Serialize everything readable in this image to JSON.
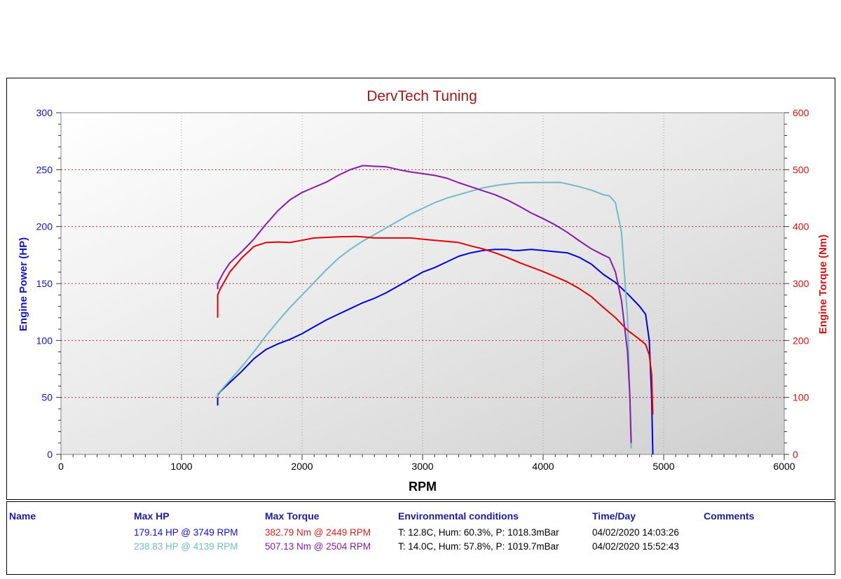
{
  "chart_data": {
    "type": "line",
    "title": "DervTech Tuning",
    "xlabel": "RPM",
    "ylabel_left": "Engine Power (HP)",
    "ylabel_right": "Engine Torque (Nm)",
    "xlim": [
      0,
      6000
    ],
    "ylim_left": [
      0,
      300
    ],
    "ylim_right": [
      0,
      600
    ],
    "x_ticks": [
      "0",
      "1000",
      "2000",
      "3000",
      "4000",
      "5000",
      "6000"
    ],
    "y_ticks_left": [
      "0",
      "50",
      "100",
      "150",
      "200",
      "250",
      "300"
    ],
    "y_ticks_right": [
      "0",
      "100",
      "200",
      "300",
      "400",
      "500",
      "600"
    ],
    "grid": true,
    "legend": "none",
    "series": [
      {
        "axis": "left",
        "color": "#0000dd",
        "points": [
          [
            1300,
            43
          ],
          [
            1300,
            52
          ],
          [
            1320,
            55
          ],
          [
            1400,
            63
          ],
          [
            1500,
            73
          ],
          [
            1600,
            84
          ],
          [
            1700,
            92
          ],
          [
            1800,
            97
          ],
          [
            1900,
            101
          ],
          [
            2000,
            106
          ],
          [
            2100,
            112
          ],
          [
            2200,
            118
          ],
          [
            2300,
            123
          ],
          [
            2400,
            128
          ],
          [
            2500,
            133
          ],
          [
            2600,
            137
          ],
          [
            2700,
            142
          ],
          [
            2800,
            148
          ],
          [
            2900,
            154
          ],
          [
            3000,
            160
          ],
          [
            3100,
            164
          ],
          [
            3200,
            169
          ],
          [
            3300,
            174
          ],
          [
            3400,
            177
          ],
          [
            3500,
            179
          ],
          [
            3600,
            180
          ],
          [
            3700,
            180
          ],
          [
            3749,
            179.14
          ],
          [
            3800,
            179
          ],
          [
            3900,
            180
          ],
          [
            4000,
            179
          ],
          [
            4100,
            178
          ],
          [
            4200,
            177
          ],
          [
            4300,
            173
          ],
          [
            4400,
            167
          ],
          [
            4500,
            158
          ],
          [
            4600,
            151
          ],
          [
            4700,
            141
          ],
          [
            4800,
            130
          ],
          [
            4850,
            123
          ],
          [
            4880,
            100
          ],
          [
            4900,
            50
          ],
          [
            4910,
            0
          ]
        ]
      },
      {
        "axis": "left",
        "color": "#6fbcc4",
        "points": [
          [
            1300,
            50
          ],
          [
            1300,
            53
          ],
          [
            1400,
            65
          ],
          [
            1500,
            77
          ],
          [
            1600,
            90
          ],
          [
            1700,
            104
          ],
          [
            1800,
            117
          ],
          [
            1900,
            129
          ],
          [
            2000,
            140
          ],
          [
            2100,
            151
          ],
          [
            2200,
            162
          ],
          [
            2300,
            172
          ],
          [
            2400,
            180
          ],
          [
            2500,
            187
          ],
          [
            2600,
            193
          ],
          [
            2700,
            199
          ],
          [
            2800,
            205
          ],
          [
            2900,
            211
          ],
          [
            3000,
            216
          ],
          [
            3100,
            221
          ],
          [
            3200,
            225
          ],
          [
            3300,
            228
          ],
          [
            3400,
            231
          ],
          [
            3500,
            234
          ],
          [
            3600,
            236
          ],
          [
            3700,
            237.5
          ],
          [
            3800,
            238.5
          ],
          [
            3900,
            238.7
          ],
          [
            4000,
            238.8
          ],
          [
            4139,
            238.83
          ],
          [
            4200,
            237.5
          ],
          [
            4300,
            235
          ],
          [
            4400,
            232
          ],
          [
            4500,
            228
          ],
          [
            4550,
            227
          ],
          [
            4600,
            221
          ],
          [
            4650,
            195
          ],
          [
            4700,
            120
          ],
          [
            4720,
            50
          ],
          [
            4730,
            5
          ]
        ]
      },
      {
        "axis": "right",
        "color": "#e60000",
        "points": [
          [
            1300,
            240
          ],
          [
            1300,
            280
          ],
          [
            1320,
            290
          ],
          [
            1400,
            320
          ],
          [
            1500,
            345
          ],
          [
            1600,
            365
          ],
          [
            1700,
            372
          ],
          [
            1800,
            373
          ],
          [
            1900,
            372
          ],
          [
            2000,
            376
          ],
          [
            2100,
            380
          ],
          [
            2200,
            381
          ],
          [
            2300,
            382
          ],
          [
            2449,
            382.79
          ],
          [
            2500,
            382
          ],
          [
            2600,
            380
          ],
          [
            2700,
            380
          ],
          [
            2800,
            380
          ],
          [
            2900,
            380
          ],
          [
            3000,
            378
          ],
          [
            3100,
            376
          ],
          [
            3200,
            374
          ],
          [
            3300,
            372
          ],
          [
            3400,
            366
          ],
          [
            3500,
            361
          ],
          [
            3600,
            354
          ],
          [
            3700,
            346
          ],
          [
            3800,
            337
          ],
          [
            3900,
            329
          ],
          [
            4000,
            321
          ],
          [
            4100,
            312
          ],
          [
            4200,
            303
          ],
          [
            4300,
            291
          ],
          [
            4400,
            277
          ],
          [
            4500,
            258
          ],
          [
            4600,
            240
          ],
          [
            4700,
            218
          ],
          [
            4800,
            202
          ],
          [
            4850,
            193
          ],
          [
            4880,
            175
          ],
          [
            4900,
            140
          ],
          [
            4910,
            70
          ]
        ]
      },
      {
        "axis": "right",
        "color": "#8a1aa8",
        "points": [
          [
            1300,
            290
          ],
          [
            1300,
            300
          ],
          [
            1350,
            320
          ],
          [
            1400,
            336
          ],
          [
            1500,
            356
          ],
          [
            1600,
            378
          ],
          [
            1700,
            404
          ],
          [
            1800,
            428
          ],
          [
            1900,
            447
          ],
          [
            2000,
            460
          ],
          [
            2100,
            469
          ],
          [
            2200,
            478
          ],
          [
            2300,
            490
          ],
          [
            2400,
            500
          ],
          [
            2504,
            507.13
          ],
          [
            2600,
            506
          ],
          [
            2700,
            505
          ],
          [
            2800,
            500
          ],
          [
            2900,
            496
          ],
          [
            3000,
            493
          ],
          [
            3100,
            490
          ],
          [
            3200,
            485
          ],
          [
            3300,
            477
          ],
          [
            3400,
            470
          ],
          [
            3500,
            463
          ],
          [
            3600,
            456
          ],
          [
            3700,
            447
          ],
          [
            3800,
            436
          ],
          [
            3900,
            424
          ],
          [
            4000,
            414
          ],
          [
            4100,
            403
          ],
          [
            4200,
            390
          ],
          [
            4300,
            375
          ],
          [
            4400,
            361
          ],
          [
            4500,
            350
          ],
          [
            4550,
            345
          ],
          [
            4600,
            320
          ],
          [
            4650,
            270
          ],
          [
            4700,
            180
          ],
          [
            4720,
            100
          ],
          [
            4730,
            20
          ]
        ]
      }
    ]
  },
  "info_panel": {
    "headers": {
      "name": "Name",
      "max_hp": "Max HP",
      "max_torque": "Max Torque",
      "env": "Environmental conditions",
      "time": "Time/Day",
      "comments": "Comments"
    },
    "rows": [
      {
        "max_hp": "179.14 HP @ 3749 RPM",
        "max_torque": "382.79 Nm @ 2449 RPM",
        "env": "T: 12.8C, Hum: 60.3%, P: 1018.3mBar",
        "time": "04/02/2020 14:03:26",
        "hp_color": "#1010d0",
        "torque_color": "#e02020"
      },
      {
        "max_hp": "238.83 HP @ 4139 RPM",
        "max_torque": "507.13 Nm @ 2504 RPM",
        "env": "T: 14.0C, Hum: 57.8%, P: 1019.7mBar",
        "time": "04/02/2020 15:52:43",
        "hp_color": "#6fbcc4",
        "torque_color": "#8a1aa8"
      }
    ]
  }
}
